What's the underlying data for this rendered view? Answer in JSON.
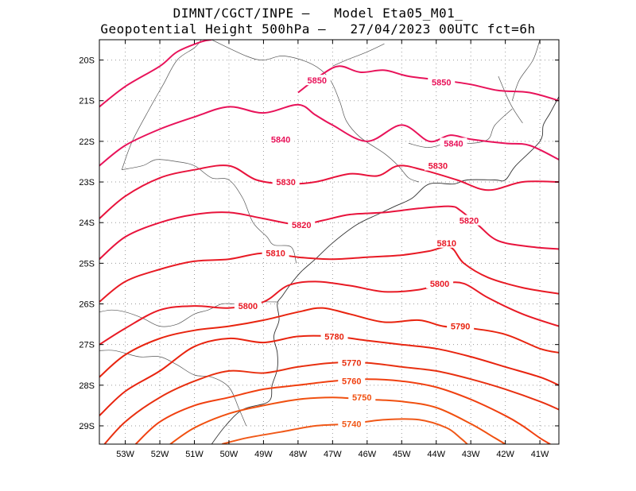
{
  "header": {
    "title_line1": "DIMNT/CGCT/INPE –   Model Eta05_M01_",
    "title_line2": "Geopotential Height 500hPa –   27/04/2023 00UTC fct=6h"
  },
  "map": {
    "lon_range": [
      -53.75,
      -40.45
    ],
    "lat_range": [
      -29.45,
      -19.5
    ],
    "lon_ticks": [
      "53W",
      "52W",
      "51W",
      "50W",
      "49W",
      "48W",
      "47W",
      "46W",
      "45W",
      "44W",
      "43W",
      "42W",
      "41W"
    ],
    "lat_ticks": [
      "20S",
      "21S",
      "22S",
      "23S",
      "24S",
      "25S",
      "26S",
      "27S",
      "28S",
      "29S"
    ],
    "grid": true
  },
  "contours": [
    {
      "value": "5850",
      "color": "#e8135a",
      "labels": [
        [
          -47.45,
          -20.5
        ],
        [
          -43.85,
          -20.55
        ]
      ],
      "pts": [
        [
          -53.75,
          -21.15
        ],
        [
          -53.0,
          -20.65
        ],
        [
          -52.0,
          -20.15
        ],
        [
          -51.5,
          -19.8
        ],
        [
          -50.8,
          -19.55
        ],
        [
          -50.5,
          -19.5
        ]
      ],
      "pts2": [
        [
          -48.0,
          -20.8
        ],
        [
          -47.3,
          -20.35
        ],
        [
          -46.8,
          -20.15
        ],
        [
          -46.2,
          -20.3
        ],
        [
          -45.5,
          -20.25
        ],
        [
          -44.8,
          -20.4
        ],
        [
          -43.8,
          -20.5
        ],
        [
          -43.0,
          -20.6
        ],
        [
          -42.2,
          -20.75
        ],
        [
          -41.3,
          -20.8
        ],
        [
          -40.45,
          -21.0
        ]
      ]
    },
    {
      "value": "5840",
      "color": "#e8135a",
      "labels": [
        [
          -48.5,
          -21.95
        ],
        [
          -43.5,
          -22.05
        ]
      ],
      "pts": [
        [
          -53.75,
          -22.6
        ],
        [
          -53.0,
          -22.1
        ],
        [
          -52.0,
          -21.7
        ],
        [
          -51.0,
          -21.4
        ],
        [
          -50.0,
          -21.15
        ],
        [
          -49.0,
          -21.3
        ],
        [
          -48.0,
          -21.1
        ],
        [
          -47.5,
          -21.35
        ],
        [
          -47.0,
          -21.6
        ],
        [
          -46.0,
          -22.0
        ],
        [
          -45.0,
          -21.6
        ],
        [
          -44.2,
          -22.0
        ],
        [
          -43.6,
          -21.85
        ],
        [
          -43.0,
          -21.95
        ],
        [
          -42.0,
          -22.05
        ],
        [
          -41.3,
          -22.1
        ],
        [
          -40.45,
          -22.45
        ]
      ]
    },
    {
      "value": "5830",
      "color": "#e8133c",
      "labels": [
        [
          -48.35,
          -23.0
        ],
        [
          -43.95,
          -22.6
        ]
      ],
      "pts": [
        [
          -53.75,
          -23.9
        ],
        [
          -53.0,
          -23.35
        ],
        [
          -52.0,
          -22.9
        ],
        [
          -51.0,
          -22.7
        ],
        [
          -50.0,
          -22.6
        ],
        [
          -49.2,
          -22.95
        ],
        [
          -48.3,
          -23.05
        ],
        [
          -47.5,
          -23.0
        ],
        [
          -46.5,
          -22.8
        ],
        [
          -45.7,
          -22.85
        ],
        [
          -45.1,
          -22.6
        ],
        [
          -44.4,
          -22.7
        ],
        [
          -43.4,
          -22.95
        ],
        [
          -42.5,
          -23.2
        ],
        [
          -41.5,
          -23.0
        ],
        [
          -40.45,
          -23.0
        ]
      ]
    },
    {
      "value": "5820",
      "color": "#e8133c",
      "labels": [
        [
          -47.9,
          -24.05
        ],
        [
          -43.05,
          -23.95
        ]
      ],
      "pts": [
        [
          -53.75,
          -24.9
        ],
        [
          -53.0,
          -24.35
        ],
        [
          -52.0,
          -24.0
        ],
        [
          -51.0,
          -23.8
        ],
        [
          -50.0,
          -23.75
        ],
        [
          -49.0,
          -23.9
        ],
        [
          -48.0,
          -24.05
        ],
        [
          -47.3,
          -23.95
        ],
        [
          -46.5,
          -23.8
        ],
        [
          -45.5,
          -23.75
        ],
        [
          -44.5,
          -23.65
        ],
        [
          -43.6,
          -23.6
        ],
        [
          -43.3,
          -23.7
        ],
        [
          -42.8,
          -24.05
        ],
        [
          -42.2,
          -24.45
        ],
        [
          -41.2,
          -24.6
        ],
        [
          -40.45,
          -24.65
        ]
      ]
    },
    {
      "value": "5810",
      "color": "#e81a24",
      "labels": [
        [
          -48.65,
          -24.75
        ],
        [
          -43.7,
          -24.5
        ]
      ],
      "pts": [
        [
          -53.75,
          -25.95
        ],
        [
          -53.0,
          -25.45
        ],
        [
          -52.0,
          -25.15
        ],
        [
          -51.0,
          -24.95
        ],
        [
          -50.0,
          -24.9
        ],
        [
          -49.0,
          -24.75
        ],
        [
          -48.0,
          -24.85
        ],
        [
          -47.0,
          -24.9
        ],
        [
          -46.0,
          -24.85
        ],
        [
          -45.0,
          -24.8
        ],
        [
          -44.2,
          -24.7
        ],
        [
          -43.6,
          -24.6
        ],
        [
          -43.2,
          -25.0
        ],
        [
          -42.5,
          -25.35
        ],
        [
          -41.5,
          -25.6
        ],
        [
          -40.45,
          -25.75
        ]
      ]
    },
    {
      "value": "5800",
      "color": "#e81a24",
      "labels": [
        [
          -49.45,
          -26.05
        ],
        [
          -43.9,
          -25.5
        ]
      ],
      "pts": [
        [
          -53.75,
          -27.0
        ],
        [
          -53.0,
          -26.6
        ],
        [
          -52.0,
          -26.15
        ],
        [
          -51.0,
          -26.05
        ],
        [
          -50.0,
          -26.1
        ],
        [
          -49.0,
          -25.95
        ],
        [
          -48.3,
          -25.55
        ],
        [
          -47.5,
          -25.45
        ],
        [
          -46.5,
          -25.55
        ],
        [
          -45.5,
          -25.7
        ],
        [
          -44.5,
          -25.65
        ],
        [
          -43.8,
          -25.5
        ],
        [
          -43.2,
          -25.5
        ],
        [
          -42.5,
          -25.85
        ],
        [
          -41.5,
          -26.25
        ],
        [
          -40.45,
          -26.55
        ]
      ]
    },
    {
      "value": "5790",
      "color": "#e8240f",
      "labels": [
        [
          -43.3,
          -26.55
        ]
      ],
      "pts": [
        [
          -53.75,
          -27.8
        ],
        [
          -53.0,
          -27.25
        ],
        [
          -52.0,
          -26.85
        ],
        [
          -51.0,
          -26.65
        ],
        [
          -50.0,
          -26.55
        ],
        [
          -49.0,
          -26.4
        ],
        [
          -48.0,
          -26.2
        ],
        [
          -47.3,
          -26.1
        ],
        [
          -46.5,
          -26.25
        ],
        [
          -45.5,
          -26.45
        ],
        [
          -44.5,
          -26.4
        ],
        [
          -43.8,
          -26.55
        ],
        [
          -43.0,
          -26.6
        ],
        [
          -42.0,
          -26.75
        ],
        [
          -41.0,
          -27.1
        ],
        [
          -40.45,
          -27.2
        ]
      ]
    },
    {
      "value": "5780",
      "color": "#e8240f",
      "labels": [
        [
          -46.95,
          -26.8
        ]
      ],
      "pts": [
        [
          -53.75,
          -28.75
        ],
        [
          -53.0,
          -28.15
        ],
        [
          -52.0,
          -27.65
        ],
        [
          -51.0,
          -27.05
        ],
        [
          -50.0,
          -26.85
        ],
        [
          -49.0,
          -26.95
        ],
        [
          -48.0,
          -26.8
        ],
        [
          -47.0,
          -26.8
        ],
        [
          -46.0,
          -26.9
        ],
        [
          -45.0,
          -27.0
        ],
        [
          -44.0,
          -27.1
        ],
        [
          -43.0,
          -27.3
        ],
        [
          -42.0,
          -27.55
        ],
        [
          -41.0,
          -27.8
        ],
        [
          -40.45,
          -28.0
        ]
      ]
    },
    {
      "value": "5770",
      "color": "#e83010",
      "labels": [
        [
          -46.45,
          -27.45
        ]
      ],
      "pts": [
        [
          -53.75,
          -29.6
        ],
        [
          -53.0,
          -28.9
        ],
        [
          -52.0,
          -28.3
        ],
        [
          -51.0,
          -27.9
        ],
        [
          -50.0,
          -27.65
        ],
        [
          -49.0,
          -27.7
        ],
        [
          -48.0,
          -27.55
        ],
        [
          -47.0,
          -27.45
        ],
        [
          -46.0,
          -27.45
        ],
        [
          -45.0,
          -27.55
        ],
        [
          -44.0,
          -27.65
        ],
        [
          -43.0,
          -27.85
        ],
        [
          -42.0,
          -28.1
        ],
        [
          -41.0,
          -28.4
        ],
        [
          -40.45,
          -28.6
        ]
      ]
    },
    {
      "value": "5760",
      "color": "#f04010",
      "labels": [
        [
          -46.45,
          -27.9
        ]
      ],
      "pts": [
        [
          -52.7,
          -29.45
        ],
        [
          -52.0,
          -28.9
        ],
        [
          -51.0,
          -28.5
        ],
        [
          -50.0,
          -28.3
        ],
        [
          -49.0,
          -28.1
        ],
        [
          -48.0,
          -28.0
        ],
        [
          -47.0,
          -27.9
        ],
        [
          -46.0,
          -27.85
        ],
        [
          -45.0,
          -27.9
        ],
        [
          -44.0,
          -28.05
        ],
        [
          -43.0,
          -28.35
        ],
        [
          -42.0,
          -28.75
        ],
        [
          -41.5,
          -29.0
        ],
        [
          -41.0,
          -29.3
        ],
        [
          -40.7,
          -29.45
        ]
      ]
    },
    {
      "value": "5750",
      "color": "#f05010",
      "labels": [
        [
          -46.15,
          -28.3
        ]
      ],
      "pts": [
        [
          -51.7,
          -29.45
        ],
        [
          -51.0,
          -29.05
        ],
        [
          -50.0,
          -28.7
        ],
        [
          -49.0,
          -28.5
        ],
        [
          -48.0,
          -28.35
        ],
        [
          -47.0,
          -28.3
        ],
        [
          -46.0,
          -28.35
        ],
        [
          -45.0,
          -28.4
        ],
        [
          -44.0,
          -28.55
        ],
        [
          -43.0,
          -28.95
        ],
        [
          -42.3,
          -29.3
        ],
        [
          -42.0,
          -29.45
        ]
      ]
    },
    {
      "value": "5740",
      "color": "#f05818",
      "labels": [
        [
          -46.45,
          -28.95
        ]
      ],
      "pts": [
        [
          -50.2,
          -29.45
        ],
        [
          -49.5,
          -29.3
        ],
        [
          -48.5,
          -29.15
        ],
        [
          -47.5,
          -29.0
        ],
        [
          -46.5,
          -28.95
        ],
        [
          -45.5,
          -28.85
        ],
        [
          -44.5,
          -28.85
        ],
        [
          -43.7,
          -29.05
        ],
        [
          -43.3,
          -29.3
        ],
        [
          -43.1,
          -29.45
        ]
      ]
    }
  ],
  "coastline": [
    [
      -50.5,
      -29.45
    ],
    [
      -50.1,
      -29.0
    ],
    [
      -49.6,
      -28.6
    ],
    [
      -48.85,
      -28.4
    ],
    [
      -48.75,
      -28.0
    ],
    [
      -48.6,
      -27.6
    ],
    [
      -48.6,
      -27.2
    ],
    [
      -48.7,
      -26.8
    ],
    [
      -48.55,
      -26.4
    ],
    [
      -48.6,
      -26.0
    ],
    [
      -48.45,
      -25.8
    ],
    [
      -48.2,
      -25.5
    ],
    [
      -47.9,
      -25.2
    ],
    [
      -47.5,
      -24.9
    ],
    [
      -47.0,
      -24.5
    ],
    [
      -46.3,
      -24.05
    ],
    [
      -45.7,
      -23.8
    ],
    [
      -45.2,
      -23.6
    ],
    [
      -44.7,
      -23.4
    ],
    [
      -44.2,
      -23.05
    ],
    [
      -43.5,
      -23.05
    ],
    [
      -43.1,
      -22.95
    ],
    [
      -42.3,
      -22.95
    ],
    [
      -42.0,
      -22.95
    ],
    [
      -41.7,
      -22.6
    ],
    [
      -41.0,
      -22.0
    ],
    [
      -40.9,
      -21.6
    ],
    [
      -40.7,
      -21.3
    ],
    [
      -40.45,
      -20.9
    ]
  ],
  "borders": [
    [
      [
        -53.75,
        -26.2
      ],
      [
        -53.4,
        -26.15
      ],
      [
        -53.0,
        -26.2
      ],
      [
        -52.5,
        -26.35
      ],
      [
        -52.0,
        -26.55
      ],
      [
        -51.5,
        -26.5
      ],
      [
        -51.0,
        -26.25
      ],
      [
        -50.6,
        -26.15
      ],
      [
        -50.2,
        -26.0
      ],
      [
        -49.8,
        -26.0
      ],
      [
        -49.3,
        -25.95
      ],
      [
        -48.6,
        -25.95
      ]
    ],
    [
      [
        -53.75,
        -27.15
      ],
      [
        -53.3,
        -27.15
      ],
      [
        -52.6,
        -27.3
      ],
      [
        -52.0,
        -27.3
      ],
      [
        -51.5,
        -27.5
      ],
      [
        -51.0,
        -27.75
      ],
      [
        -50.5,
        -27.8
      ],
      [
        -50.0,
        -28.05
      ],
      [
        -49.7,
        -28.6
      ],
      [
        -49.5,
        -29.0
      ]
    ],
    [
      [
        -53.1,
        -22.7
      ],
      [
        -52.5,
        -22.6
      ],
      [
        -52.1,
        -22.45
      ],
      [
        -51.5,
        -22.5
      ],
      [
        -51.0,
        -22.6
      ],
      [
        -50.5,
        -22.9
      ],
      [
        -50.0,
        -22.95
      ],
      [
        -49.6,
        -23.4
      ],
      [
        -49.3,
        -24.0
      ],
      [
        -48.9,
        -24.35
      ],
      [
        -48.7,
        -24.55
      ],
      [
        -48.2,
        -24.6
      ],
      [
        -48.05,
        -25.0
      ]
    ],
    [
      [
        -53.1,
        -22.7
      ],
      [
        -52.8,
        -22.0
      ],
      [
        -52.3,
        -21.2
      ],
      [
        -51.9,
        -20.6
      ],
      [
        -51.5,
        -20.0
      ],
      [
        -51.0,
        -19.7
      ],
      [
        -50.8,
        -19.5
      ]
    ],
    [
      [
        -50.5,
        -19.5
      ],
      [
        -49.5,
        -19.9
      ],
      [
        -49.0,
        -20.0
      ],
      [
        -48.4,
        -19.9
      ],
      [
        -47.6,
        -20.1
      ],
      [
        -47.1,
        -20.45
      ],
      [
        -46.8,
        -21.0
      ],
      [
        -46.6,
        -21.5
      ],
      [
        -46.2,
        -21.9
      ],
      [
        -45.5,
        -22.3
      ],
      [
        -45.1,
        -22.6
      ],
      [
        -44.8,
        -22.9
      ],
      [
        -44.5,
        -23.0
      ]
    ],
    [
      [
        -47.0,
        -20.15
      ],
      [
        -46.6,
        -20.0
      ],
      [
        -46.0,
        -19.8
      ],
      [
        -45.5,
        -19.6
      ]
    ],
    [
      [
        -42.2,
        -20.4
      ],
      [
        -41.9,
        -21.0
      ],
      [
        -41.7,
        -21.3
      ],
      [
        -41.5,
        -21.55
      ]
    ],
    [
      [
        -41.0,
        -19.5
      ],
      [
        -41.2,
        -20.0
      ],
      [
        -41.6,
        -20.5
      ],
      [
        -41.8,
        -21.0
      ]
    ],
    [
      [
        -44.8,
        -22.05
      ],
      [
        -44.2,
        -22.15
      ],
      [
        -43.5,
        -22.0
      ],
      [
        -43.0,
        -22.05
      ],
      [
        -42.5,
        -21.95
      ],
      [
        -42.3,
        -21.6
      ],
      [
        -41.8,
        -21.2
      ]
    ]
  ]
}
